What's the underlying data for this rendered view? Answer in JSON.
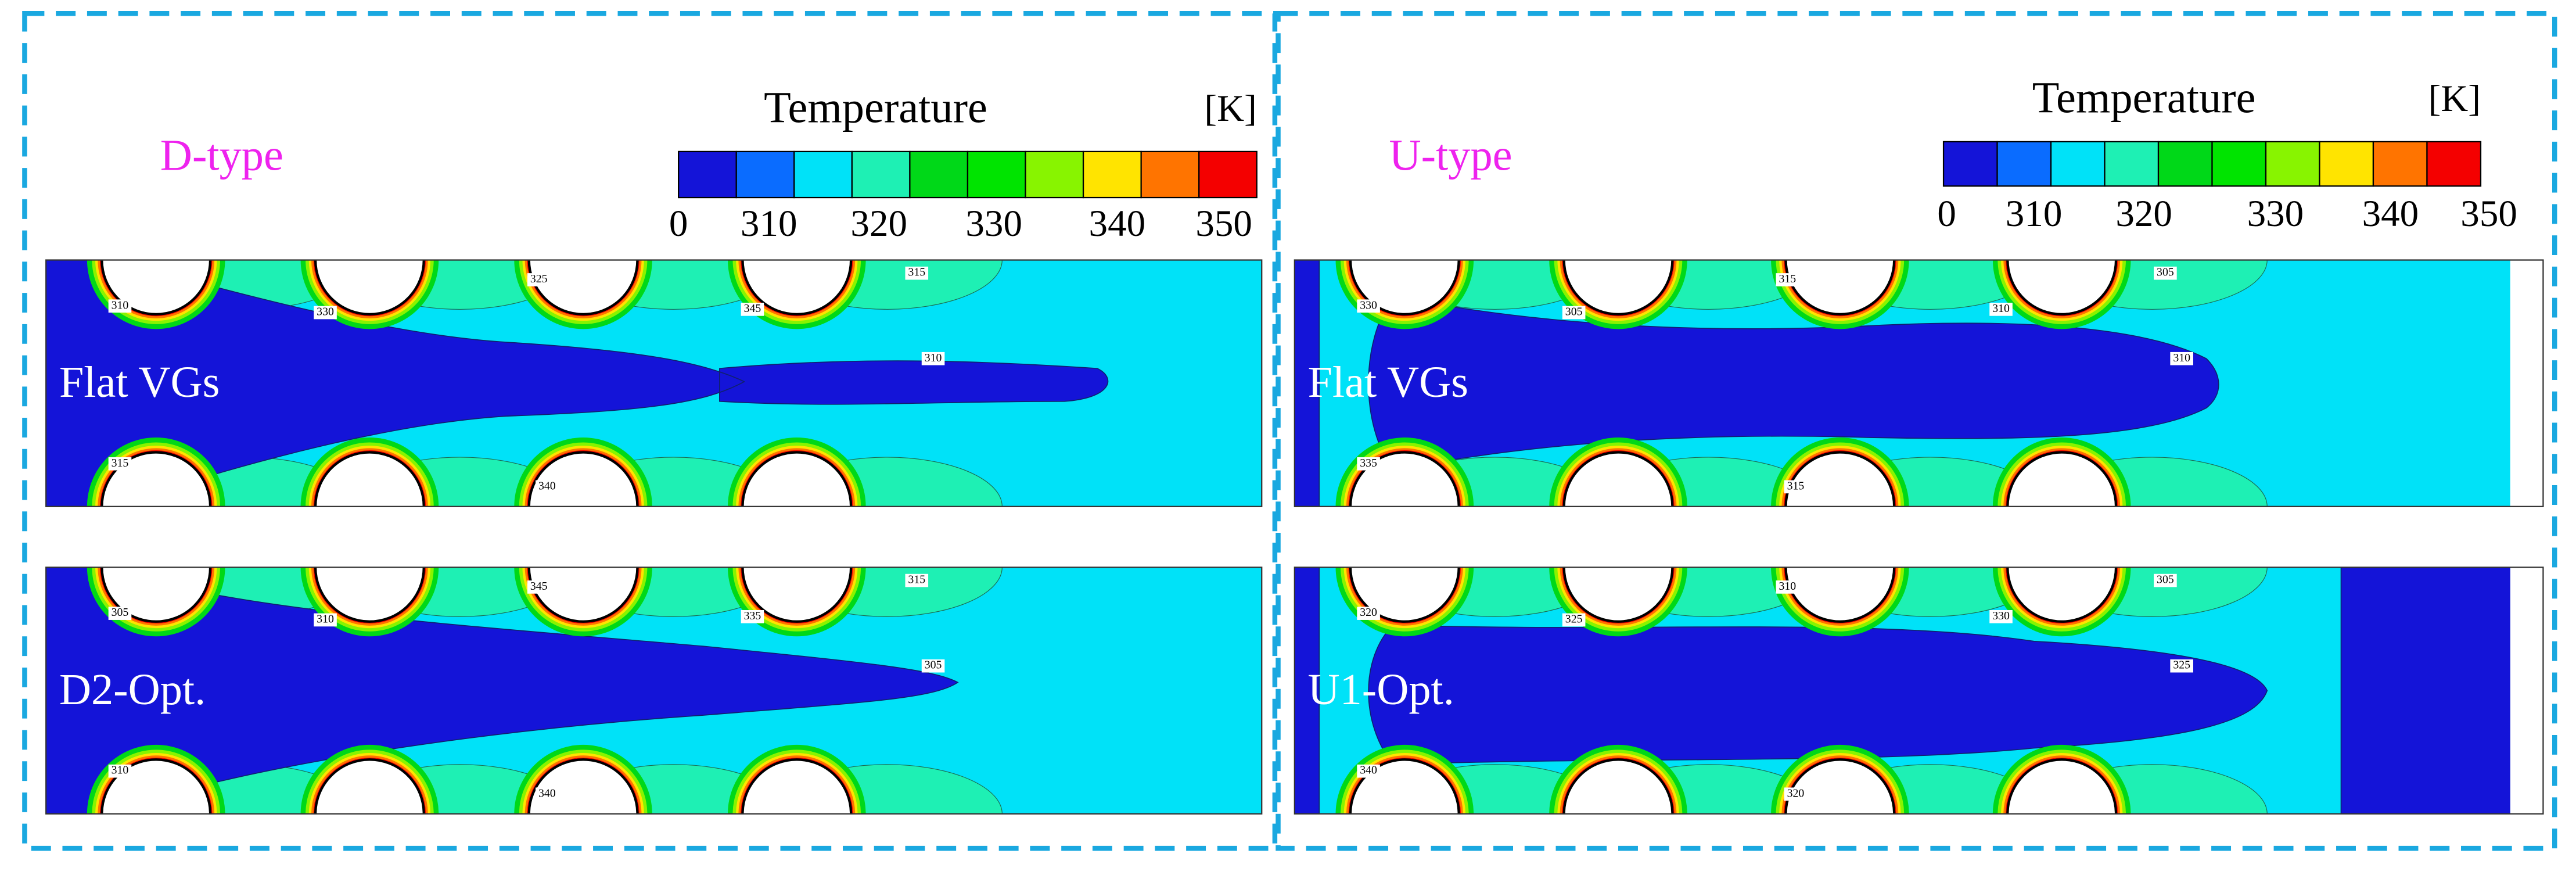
{
  "panels": [
    {
      "label": "D-type",
      "colorbar": {
        "title": "Temperature",
        "unit": "[K]",
        "ticks": [
          "0",
          "310",
          "320",
          "330",
          "340",
          "350"
        ],
        "colors": [
          "#1414d8",
          "#0a6cff",
          "#00e2f8",
          "#1ef0b4",
          "#00d818",
          "#00e400",
          "#88f400",
          "#ffe400",
          "#ff7400",
          "#f40000"
        ]
      },
      "plots": [
        {
          "label": "Flat VGs",
          "contour_labels": [
            "310",
            "330",
            "325",
            "345",
            "315",
            "310",
            "315",
            "340"
          ]
        },
        {
          "label": "D2-Opt.",
          "contour_labels": [
            "305",
            "310",
            "345",
            "335",
            "315",
            "305",
            "310",
            "340"
          ]
        }
      ]
    },
    {
      "label": "U-type",
      "colorbar": {
        "title": "Temperature",
        "unit": "[K]",
        "ticks": [
          "0",
          "310",
          "320",
          "330",
          "340",
          "350"
        ],
        "colors": [
          "#1414d8",
          "#0a6cff",
          "#00e2f8",
          "#1ef0b4",
          "#00d818",
          "#00e400",
          "#88f400",
          "#ffe400",
          "#ff7400",
          "#f40000"
        ]
      },
      "plots": [
        {
          "label": "Flat VGs",
          "contour_labels": [
            "330",
            "305",
            "315",
            "310",
            "305",
            "310",
            "335",
            "315"
          ]
        },
        {
          "label": "U1-Opt.",
          "contour_labels": [
            "320",
            "325",
            "310",
            "330",
            "305",
            "325",
            "340",
            "320"
          ]
        }
      ]
    }
  ]
}
